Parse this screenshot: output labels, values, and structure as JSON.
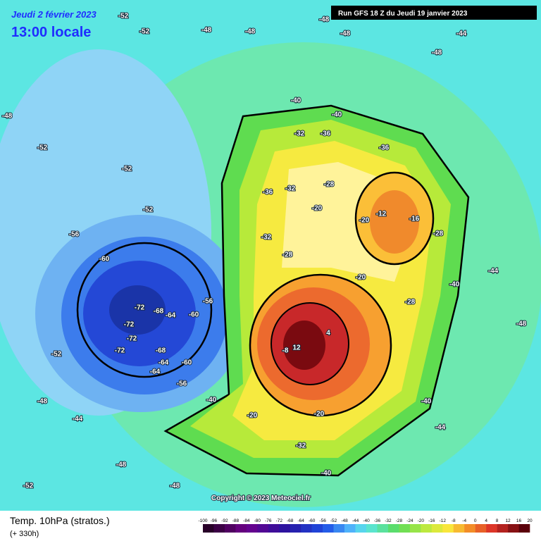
{
  "header": {
    "date": "Jeudi 2 février 2023",
    "time": "13:00 locale",
    "run": "Run GFS 18 Z du Jeudi 19 janvier 2023"
  },
  "copyright": "Copyright © 2023 Meteociel.fr",
  "footer": {
    "title": "Temp. 10hPa (stratos.)",
    "lead": "(+ 330h)"
  },
  "legend": {
    "ticks": [
      -100,
      -96,
      -92,
      -88,
      -84,
      -80,
      -76,
      -72,
      -68,
      -64,
      -60,
      -56,
      -52,
      -48,
      -44,
      -40,
      -36,
      -32,
      -28,
      -24,
      -20,
      -16,
      -12,
      -8,
      -4,
      0,
      4,
      8,
      12,
      16,
      20
    ]
  },
  "contour_labels": [
    -52,
    -52,
    -48,
    -48,
    -48,
    -48,
    -44,
    -48,
    -48,
    -52,
    -52,
    -52,
    -56,
    -60,
    -72,
    -68,
    -64,
    -60,
    -72,
    -72,
    -72,
    -68,
    -64,
    -60,
    -64,
    -56,
    -56,
    -52,
    -48,
    -44,
    -48,
    -40,
    -40,
    -32,
    -36,
    -36,
    -36,
    -32,
    -28,
    -20,
    -32,
    -28,
    -20,
    -12,
    -16,
    -28,
    -20,
    -28,
    -40,
    -44,
    4,
    12,
    -8,
    -40,
    -20,
    -20,
    -32,
    -40,
    -40,
    -44,
    -48,
    -52,
    -48
  ]
}
